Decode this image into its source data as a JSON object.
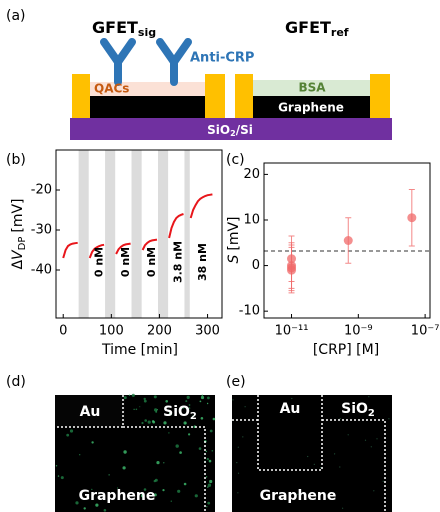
{
  "panel_labels": [
    "(a)",
    "(b)",
    "(c)",
    "(d)",
    "(e)"
  ],
  "schematic": {
    "devices": [
      {
        "name": "GFET",
        "sub": "sig"
      },
      {
        "name": "GFET",
        "sub": "ref"
      }
    ],
    "antibody": "Anti-CRP",
    "coating": "QACs",
    "blocker": "BSA",
    "channel": "Graphene",
    "substrate": {
      "main": "SiO",
      "sub": "2",
      "rest": "/Si"
    }
  },
  "chart_data": [
    {
      "type": "line",
      "y_label": {
        "prefix": "Δ",
        "var": "V",
        "sub": "DP",
        "unit": "[mV]"
      },
      "x_label": "Time [min]",
      "x": [
        0,
        5,
        10,
        15,
        20,
        25,
        30,
        42,
        55,
        60,
        65,
        70,
        75,
        80,
        85,
        97,
        110,
        115,
        120,
        125,
        130,
        135,
        140,
        152,
        165,
        170,
        175,
        180,
        185,
        190,
        195,
        207,
        220,
        225,
        230,
        235,
        240,
        245,
        250,
        257,
        265,
        270,
        275,
        280,
        285,
        290,
        295,
        300,
        305,
        310
      ],
      "series": [
        {
          "color": "#e8161b",
          "values": [
            -37,
            -35,
            -34,
            -33.6,
            -33.4,
            -33.3,
            -33.2,
            null,
            -37,
            -35.5,
            -34.7,
            -34.3,
            -34,
            -33.8,
            -33.7,
            null,
            -36,
            -34.8,
            -34.2,
            -33.8,
            -33.6,
            -33.5,
            -33.4,
            null,
            -35,
            -33.8,
            -33.2,
            -32.8,
            -32.6,
            -32.5,
            -32.4,
            null,
            -32,
            -29.5,
            -28,
            -27,
            -26.5,
            -26.2,
            -26,
            null,
            -27,
            -25,
            -23.8,
            -22.8,
            -22.2,
            -21.8,
            -21.5,
            -21.3,
            -21.2,
            -21.1
          ]
        }
      ],
      "shaded_spans": [
        [
          32,
          53
        ],
        [
          87,
          108
        ],
        [
          142,
          163
        ],
        [
          197,
          218
        ],
        [
          252,
          263
        ]
      ],
      "shade_color": "#dcdcdc",
      "annotations": [
        {
          "text": "0 nM",
          "x": 75
        },
        {
          "text": "0 nM",
          "x": 130
        },
        {
          "text": "0 nM",
          "x": 185
        },
        {
          "text": "3.8 nM",
          "x": 240
        },
        {
          "text": "38 nM",
          "x": 290
        }
      ],
      "xlim": [
        -15,
        330
      ],
      "xticks": [
        0,
        100,
        200,
        300
      ],
      "ylim": [
        -52,
        -10
      ],
      "yticks": [
        -20,
        -30,
        -40
      ]
    },
    {
      "type": "scatter",
      "y_label": {
        "var": "S",
        "unit": "[mV]"
      },
      "x_label": "[CRP] [M]",
      "x_scale": "log",
      "x": [
        1e-11,
        1e-11,
        1e-11,
        1e-11,
        5e-10,
        4e-08
      ],
      "series": [
        {
          "color": "#f06a6a",
          "values": [
            1.5,
            0,
            -0.5,
            -1,
            5.5,
            10.5
          ],
          "errors": [
            5,
            5,
            5,
            5,
            5,
            6.2
          ]
        }
      ],
      "reference_line": {
        "value": 3.2,
        "color": "#777777"
      },
      "xlim": [
        1.5e-12,
        1.4e-07
      ],
      "xticks": [
        {
          "value": 1e-11,
          "label": "10⁻¹¹"
        },
        {
          "value": 1e-09,
          "label": "10⁻⁹"
        },
        {
          "value": 1e-07,
          "label": "10⁻⁷"
        }
      ],
      "ylim": [
        -11.5,
        22.5
      ],
      "yticks": [
        -10,
        0,
        10,
        20
      ]
    }
  ],
  "micrographs": [
    {
      "pad": "Au",
      "oxide": {
        "main": "SiO",
        "sub": "2"
      },
      "channel": "Graphene"
    },
    {
      "pad": "Au",
      "oxide": {
        "main": "SiO",
        "sub": "2"
      },
      "channel": "Graphene"
    }
  ]
}
